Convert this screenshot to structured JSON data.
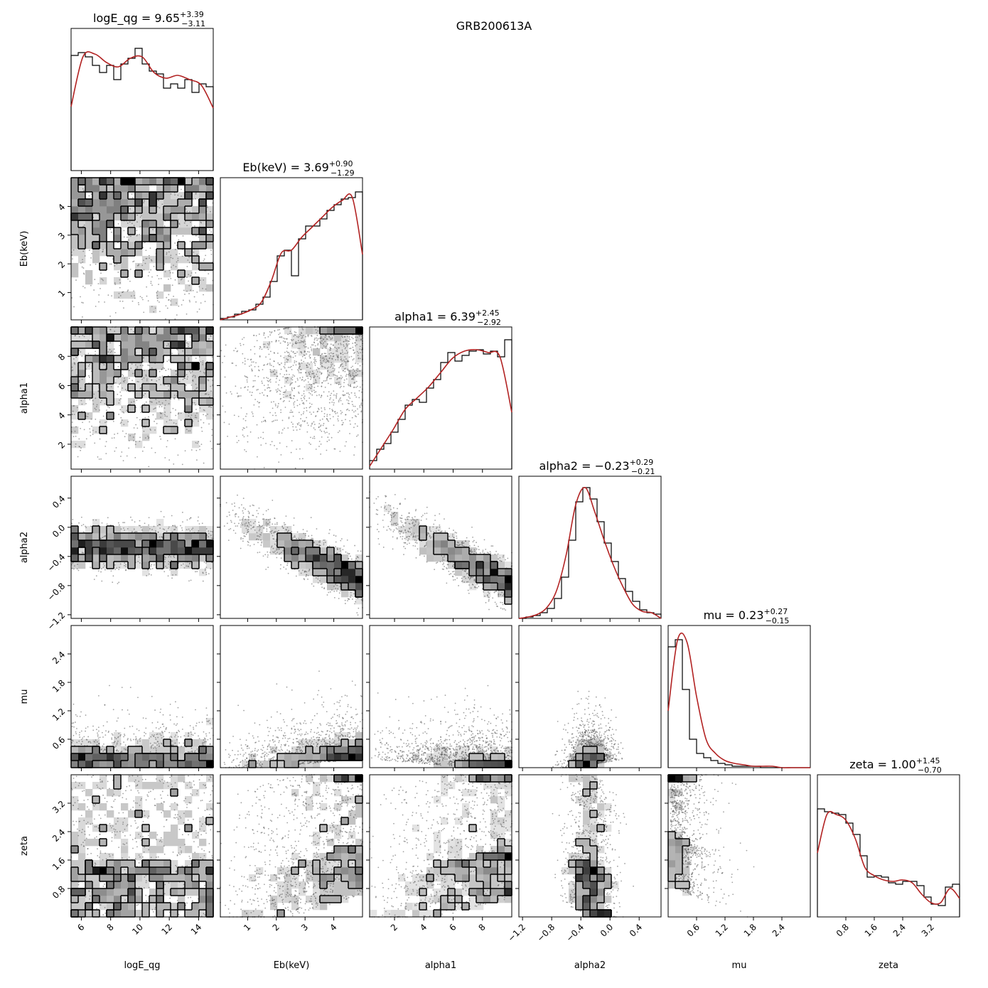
{
  "chart_data": {
    "type": "corner",
    "suptitle": "GRB200613A",
    "hist_color": "#000000",
    "kde_color": "#b22222",
    "density_color": "#000000",
    "params": [
      {
        "name": "logE_qg",
        "median": "9.65",
        "plus": "+3.39",
        "minus": "−3.11",
        "range": [
          5.3,
          15
        ],
        "ticks": [
          6,
          8,
          10,
          12,
          14
        ],
        "tick_labels": [
          "6",
          "8",
          "10",
          "12",
          "14"
        ],
        "hist": [
          0.81,
          0.83,
          0.8,
          0.74,
          0.69,
          0.74,
          0.64,
          0.75,
          0.79,
          0.86,
          0.75,
          0.7,
          0.68,
          0.58,
          0.61,
          0.58,
          0.64,
          0.55,
          0.61,
          0.59
        ],
        "kde": [
          0.45,
          0.8,
          0.82,
          0.76,
          0.73,
          0.79,
          0.8,
          0.69,
          0.65,
          0.67,
          0.64,
          0.6,
          0.44
        ],
        "dist": {
          "kind": "uniform"
        }
      },
      {
        "name": "Eb(keV)",
        "median": "3.69",
        "plus": "+0.90",
        "minus": "−1.29",
        "range": [
          0.05,
          5
        ],
        "ticks": [
          1,
          2,
          3,
          4
        ],
        "tick_labels": [
          "1",
          "2",
          "3",
          "4"
        ],
        "hist": [
          0.01,
          0.02,
          0.04,
          0.06,
          0.07,
          0.11,
          0.16,
          0.27,
          0.45,
          0.49,
          0.31,
          0.57,
          0.66,
          0.66,
          0.71,
          0.77,
          0.81,
          0.85,
          0.86,
          0.9
        ],
        "kde": [
          0.0,
          0.02,
          0.04,
          0.07,
          0.12,
          0.27,
          0.47,
          0.49,
          0.58,
          0.65,
          0.72,
          0.79,
          0.84,
          0.86,
          0.46
        ],
        "dist": {
          "kind": "rising",
          "lo": 1.8
        }
      },
      {
        "name": "alpha1",
        "median": "6.39",
        "plus": "+2.45",
        "minus": "−2.92",
        "range": [
          0.3,
          10
        ],
        "ticks": [
          2,
          4,
          6,
          8
        ],
        "tick_labels": [
          "2",
          "4",
          "6",
          "8"
        ],
        "hist": [
          0.06,
          0.14,
          0.18,
          0.26,
          0.35,
          0.45,
          0.49,
          0.47,
          0.57,
          0.63,
          0.75,
          0.82,
          0.76,
          0.8,
          0.83,
          0.84,
          0.81,
          0.83,
          0.79,
          0.91
        ],
        "kde": [
          0.02,
          0.15,
          0.28,
          0.42,
          0.5,
          0.58,
          0.68,
          0.78,
          0.83,
          0.84,
          0.82,
          0.79,
          0.4
        ],
        "dist": {
          "kind": "rising",
          "lo": 2.5
        }
      },
      {
        "name": "alpha2",
        "median": "−0.23",
        "plus": "+0.29",
        "minus": "−0.21",
        "range": [
          -1.25,
          0.7
        ],
        "ticks": [
          -1.2,
          -0.8,
          -0.4,
          0.0,
          0.4
        ],
        "tick_labels": [
          "−1.2",
          "−0.8",
          "−0.4",
          "0.0",
          "0.4"
        ],
        "hist": [
          0.0,
          0.01,
          0.02,
          0.04,
          0.07,
          0.14,
          0.29,
          0.55,
          0.82,
          0.92,
          0.84,
          0.68,
          0.53,
          0.4,
          0.28,
          0.19,
          0.12,
          0.06,
          0.04,
          0.03
        ],
        "kde": [
          0.0,
          0.01,
          0.03,
          0.08,
          0.2,
          0.45,
          0.8,
          0.92,
          0.75,
          0.55,
          0.37,
          0.22,
          0.1,
          0.05,
          0.04,
          0.0
        ],
        "dist": {
          "kind": "gauss",
          "mu": -0.27,
          "sd": 0.16
        }
      },
      {
        "name": "mu",
        "median": "0.23",
        "plus": "+0.27",
        "minus": "−0.15",
        "range": [
          0.0,
          3.0
        ],
        "ticks": [
          0.6,
          1.2,
          1.8,
          2.4
        ],
        "tick_labels": [
          "0.6",
          "1.2",
          "1.8",
          "2.4"
        ],
        "hist": [
          0.85,
          0.9,
          0.55,
          0.2,
          0.1,
          0.07,
          0.05,
          0.03,
          0.02,
          0.01,
          0.01,
          0.01,
          0.01,
          0.0,
          0.0,
          0.0,
          0.0,
          0.0,
          0.0,
          0.0
        ],
        "kde": [
          0.4,
          0.9,
          0.88,
          0.5,
          0.2,
          0.1,
          0.05,
          0.03,
          0.02,
          0.01,
          0.01,
          0.01,
          0.0,
          0.0,
          0.0,
          0.0
        ],
        "dist": {
          "kind": "exp",
          "scale": 0.28
        }
      },
      {
        "name": "zeta",
        "median": "1.00",
        "plus": "+1.45",
        "minus": "−0.70",
        "range": [
          0.0,
          4.0
        ],
        "ticks": [
          0.8,
          1.6,
          2.4,
          3.2
        ],
        "tick_labels": [
          "0.8",
          "1.6",
          "2.4",
          "3.2"
        ],
        "hist": [
          0.76,
          0.74,
          0.73,
          0.72,
          0.66,
          0.58,
          0.43,
          0.28,
          0.29,
          0.28,
          0.24,
          0.23,
          0.25,
          0.25,
          0.22,
          0.14,
          0.09,
          0.08,
          0.21,
          0.23
        ],
        "kde": [
          0.45,
          0.72,
          0.72,
          0.68,
          0.55,
          0.35,
          0.29,
          0.26,
          0.25,
          0.26,
          0.24,
          0.16,
          0.1,
          0.1,
          0.2,
          0.13
        ],
        "dist": {
          "kind": "zeta"
        }
      }
    ],
    "pairs": [
      {
        "row": 1,
        "col": 0,
        "corr": 0.0
      },
      {
        "row": 2,
        "col": 0,
        "corr": 0.0
      },
      {
        "row": 2,
        "col": 1,
        "corr": 0.25
      },
      {
        "row": 3,
        "col": 0,
        "corr": 0.0
      },
      {
        "row": 3,
        "col": 1,
        "corr": -0.55
      },
      {
        "row": 3,
        "col": 2,
        "corr": -0.6
      },
      {
        "row": 4,
        "col": 0,
        "corr": 0.0
      },
      {
        "row": 4,
        "col": 1,
        "corr": 0.1
      },
      {
        "row": 4,
        "col": 2,
        "corr": -0.1
      },
      {
        "row": 4,
        "col": 3,
        "corr": 0.2
      },
      {
        "row": 5,
        "col": 0,
        "corr": 0.0
      },
      {
        "row": 5,
        "col": 1,
        "corr": 0.35
      },
      {
        "row": 5,
        "col": 2,
        "corr": 0.3
      },
      {
        "row": 5,
        "col": 3,
        "corr": -0.55
      },
      {
        "row": 5,
        "col": 4,
        "corr": -0.5
      }
    ],
    "grid": false,
    "legend": "none"
  }
}
